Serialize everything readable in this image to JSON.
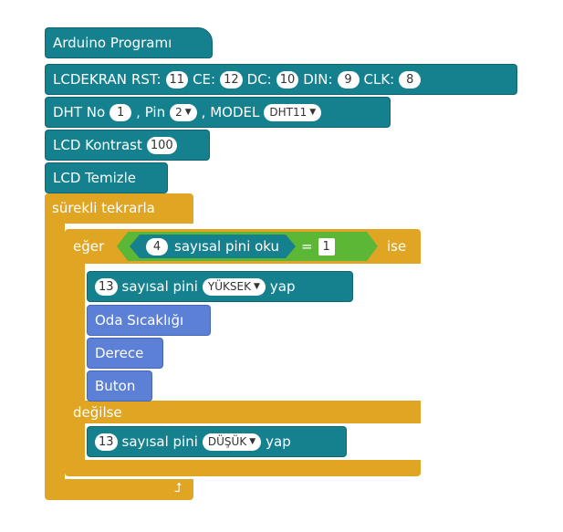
{
  "program": {
    "header": "Arduino  Programı",
    "lcd": {
      "label": "LCDEKRAN",
      "rst_label": "RST:",
      "rst": "11",
      "ce_label": "CE:",
      "ce": "12",
      "dc_label": "DC:",
      "dc": "10",
      "din_label": "DIN:",
      "din": "9",
      "clk_label": "CLK:",
      "clk": "8"
    },
    "dht": {
      "label": "DHT No",
      "no": "1",
      "pin_label": ", Pin",
      "pin": "2",
      "model_label": ", MODEL",
      "model": "DHT11"
    },
    "contrast": {
      "label": "LCD Kontrast",
      "value": "100"
    },
    "clear": {
      "label": "LCD Temizle"
    },
    "loop": {
      "label": "sürekli tekrarla",
      "if_label": "eğer",
      "condition": {
        "pin": "4",
        "read_label": "sayısal  pini  oku",
        "op": "=",
        "value": "1"
      },
      "then_label": "ise",
      "then_write": {
        "pin": "13",
        "label": "sayısal  pini",
        "state": "YÜKSEK",
        "suffix": "yap"
      },
      "then_blocks": [
        "Oda  Sıcaklığı",
        "Derece",
        "Buton"
      ],
      "else_label": "değilse",
      "else_write": {
        "pin": "13",
        "label": "sayısal  pini",
        "state": "DÜŞÜK",
        "suffix": "yap"
      }
    }
  },
  "colors": {
    "teal": "#16818e",
    "blue": "#5b80d5",
    "gold": "#e0a623",
    "green": "#5cb736"
  }
}
